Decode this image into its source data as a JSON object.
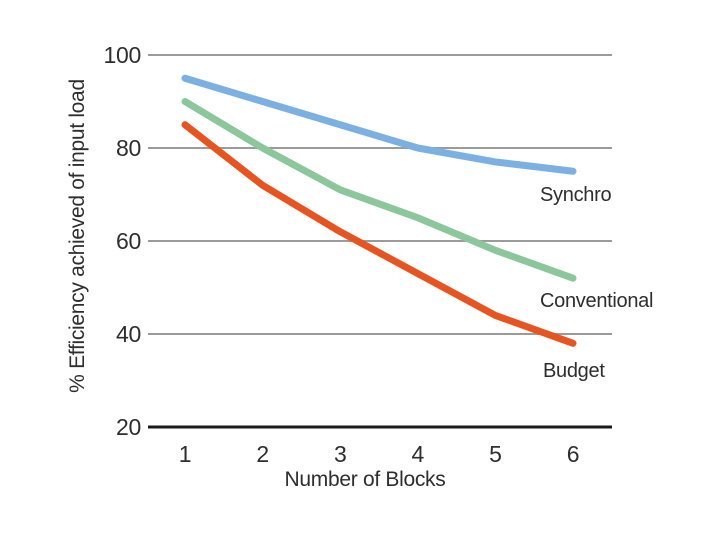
{
  "chart_data": {
    "type": "line",
    "x": [
      1,
      2,
      3,
      4,
      5,
      6
    ],
    "xlabel": "Number of Blocks",
    "ylabel": "% Efficiency achieved of input load",
    "ylim": [
      20,
      100
    ],
    "yticks": [
      100,
      80,
      60,
      40,
      20
    ],
    "grid": "horizontal gridlines at 40, 60, 80, 100; solid black baseline at 20",
    "legend_position": "inline labels right of line ends",
    "series": [
      {
        "name": "Synchro",
        "color": "#7cb0e2",
        "values": [
          95,
          90,
          85,
          80,
          77,
          75
        ]
      },
      {
        "name": "Conventional",
        "color": "#8cc79c",
        "values": [
          90,
          80,
          71,
          65,
          58,
          52
        ]
      },
      {
        "name": "Budget",
        "color": "#e65521",
        "values": [
          85,
          72,
          62,
          53,
          44,
          38
        ]
      }
    ],
    "colors": {
      "gridline": "#9b9b9b",
      "axis": "#1a1a1a",
      "text": "#2e2e2e",
      "background": "#ffffff"
    }
  }
}
